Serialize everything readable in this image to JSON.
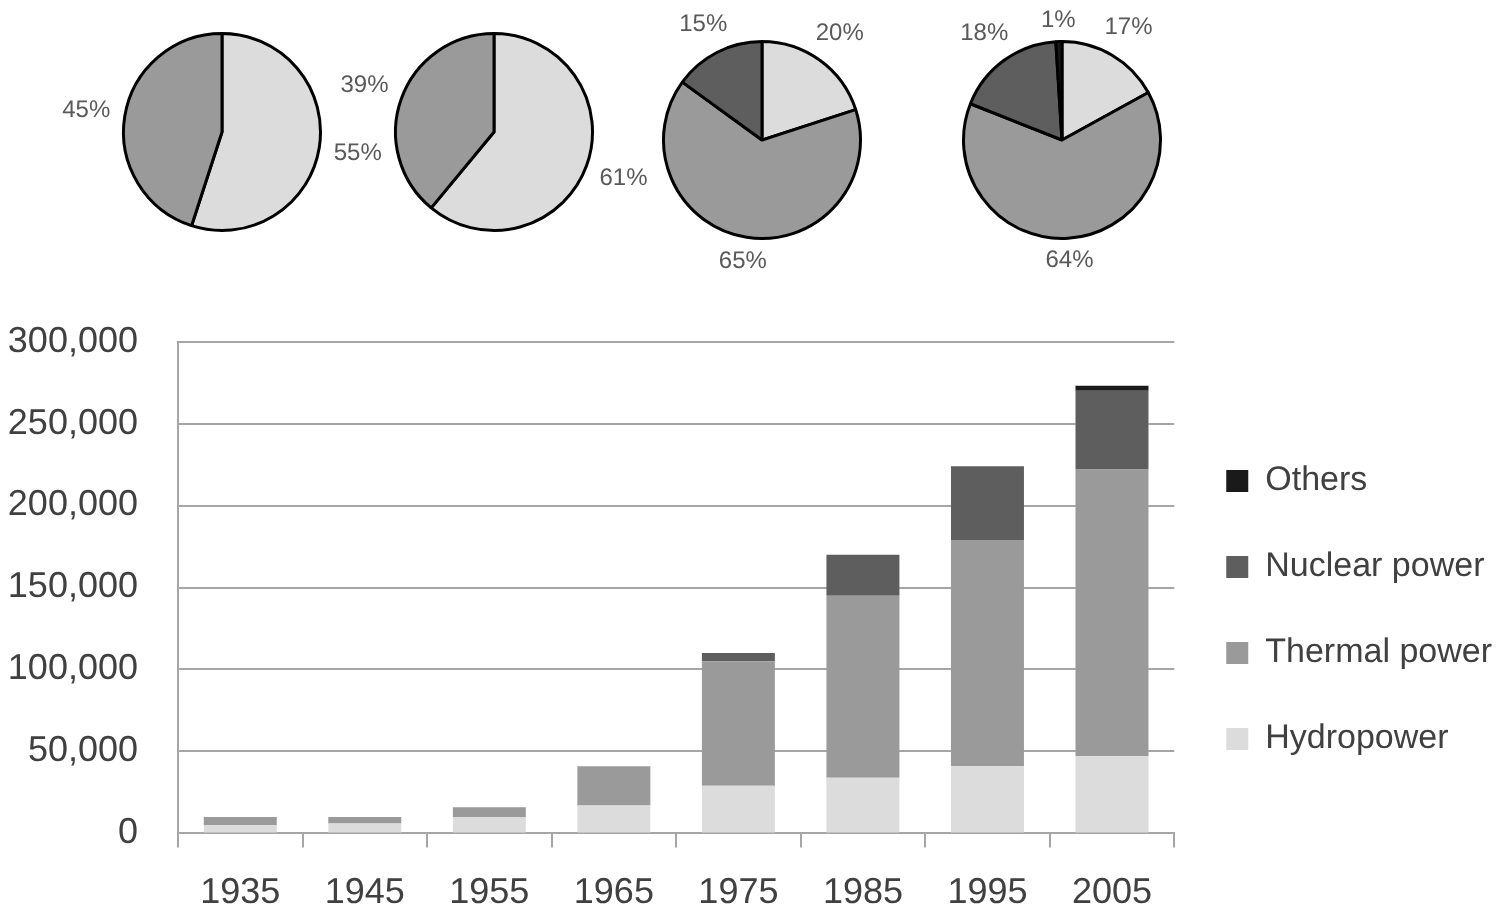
{
  "chart_data": [
    {
      "type": "pie",
      "categories": [
        null,
        null
      ],
      "values": [
        55,
        45
      ],
      "colors": [
        "#dcdcdc",
        "#9a9a9a"
      ],
      "value_labels": [
        "55%",
        "45%"
      ]
    },
    {
      "type": "pie",
      "categories": [
        null,
        null
      ],
      "values": [
        61,
        39
      ],
      "colors": [
        "#dcdcdc",
        "#9a9a9a"
      ],
      "value_labels": [
        "61%",
        "39%"
      ]
    },
    {
      "type": "pie",
      "categories": [
        null,
        null,
        null
      ],
      "values": [
        20,
        65,
        15
      ],
      "colors": [
        "#dcdcdc",
        "#9a9a9a",
        "#5e5e5e"
      ],
      "value_labels": [
        "20%",
        "65%",
        "15%"
      ]
    },
    {
      "type": "pie",
      "categories": [
        null,
        null,
        null,
        null
      ],
      "values": [
        17,
        64,
        18,
        1
      ],
      "colors": [
        "#dcdcdc",
        "#9a9a9a",
        "#5e5e5e",
        "#1a1a1a"
      ],
      "value_labels": [
        "17%",
        "64%",
        "18%",
        "1%"
      ]
    },
    {
      "type": "bar",
      "categories": [
        "1935",
        "1945",
        "1955",
        "1965",
        "1975",
        "1985",
        "1995",
        "2005"
      ],
      "stacked": true,
      "series": [
        {
          "name": "Hydropower",
          "color": "#dcdcdc",
          "values": [
            5000,
            6000,
            10000,
            17000,
            29000,
            34000,
            41000,
            47000
          ]
        },
        {
          "name": "Thermal power",
          "color": "#9a9a9a",
          "values": [
            5000,
            4000,
            6000,
            24000,
            76000,
            111000,
            138000,
            175000
          ]
        },
        {
          "name": "Nuclear power",
          "color": "#5e5e5e",
          "values": [
            null,
            null,
            null,
            null,
            5000,
            25000,
            45000,
            48000
          ]
        },
        {
          "name": "Others",
          "color": "#1a1a1a",
          "values": [
            null,
            null,
            null,
            null,
            null,
            null,
            null,
            3000
          ]
        }
      ],
      "ylim": [
        0,
        300000
      ],
      "yticks": [
        0,
        {
          "value": 50000,
          "label": "50,000"
        },
        {
          "value": 100000,
          "label": "100,000"
        },
        {
          "value": 150000,
          "label": "150,000"
        },
        {
          "value": 200000,
          "label": "200,000"
        },
        {
          "value": 250000,
          "label": "250,000"
        },
        {
          "value": 300000,
          "label": "300,000"
        }
      ],
      "grid": "y",
      "legend": "right"
    }
  ]
}
